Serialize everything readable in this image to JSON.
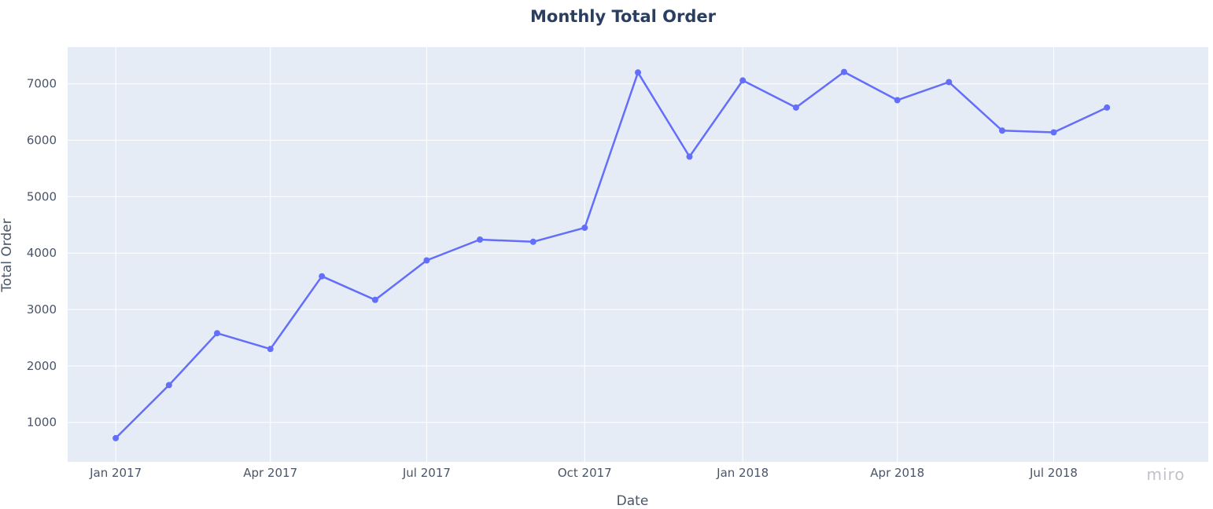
{
  "chart_data": {
    "type": "line",
    "title": "Monthly Total Order",
    "xlabel": "Date",
    "ylabel": "Total Order",
    "x_ticks": [
      "Jan 2017",
      "Apr 2017",
      "Jul 2017",
      "Oct 2017",
      "Jan 2018",
      "Apr 2018",
      "Jul 2018"
    ],
    "y_ticks": [
      1000,
      2000,
      3000,
      4000,
      5000,
      6000,
      7000
    ],
    "ylim": [
      300,
      7650
    ],
    "xlim": [
      "2016-12-04",
      "2018-09-29"
    ],
    "grid": true,
    "legend": "none",
    "line_color": "#636efa",
    "background_color": "#e5ecf6",
    "series": [
      {
        "x": [
          "2017-01-01",
          "2017-02-01",
          "2017-03-01",
          "2017-04-01",
          "2017-05-01",
          "2017-06-01",
          "2017-07-01",
          "2017-08-01",
          "2017-09-01",
          "2017-10-01",
          "2017-11-01",
          "2017-12-01",
          "2018-01-01",
          "2018-02-01",
          "2018-03-01",
          "2018-04-01",
          "2018-05-01",
          "2018-06-01",
          "2018-07-01",
          "2018-08-01"
        ],
        "values": [
          720,
          1660,
          2580,
          2300,
          3590,
          3170,
          3870,
          4240,
          4200,
          4450,
          7200,
          5710,
          7060,
          6580,
          7210,
          6710,
          7030,
          6170,
          6140,
          6580
        ]
      }
    ]
  },
  "watermark": "miro"
}
